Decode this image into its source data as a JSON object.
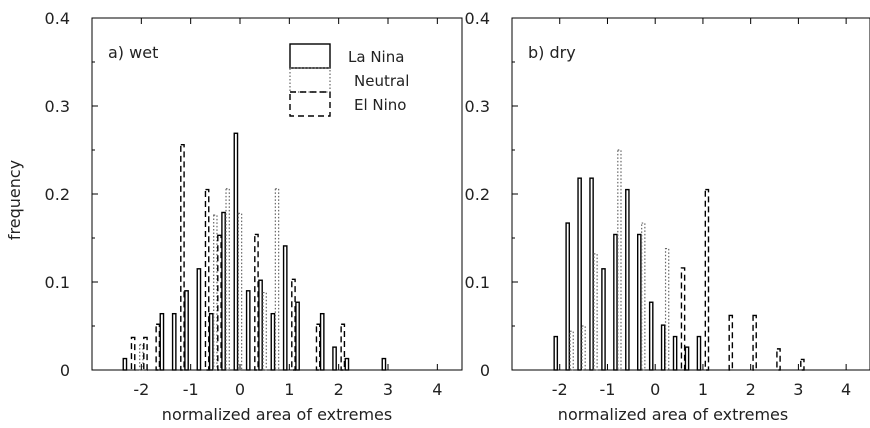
{
  "figure": {
    "ylabel": "frequency",
    "legend": [
      "La Nina",
      "Neutral",
      "El Nino"
    ],
    "legend_placement": "top-right of panel a"
  },
  "chart_data": [
    {
      "type": "bar",
      "panel_label": "a) wet",
      "xlabel": "normalized area of extremes",
      "ylabel": "frequency",
      "xlim": [
        -3,
        4.5
      ],
      "ylim": [
        0,
        0.4
      ],
      "xticks": [
        -2,
        -1,
        0,
        1,
        2,
        3,
        4
      ],
      "yticks": [
        0,
        0.1,
        0.2,
        0.3,
        0.4
      ],
      "xtick_labels": [
        "-2",
        "-1",
        "0",
        "1",
        "2",
        "3",
        "4"
      ],
      "ytick_labels": [
        "0",
        "0.1",
        "0.2",
        "0.3",
        "0.4"
      ],
      "bin_centers": [
        -2.25,
        -2.0,
        -1.75,
        -1.5,
        -1.25,
        -1.0,
        -0.75,
        -0.5,
        -0.25,
        0.0,
        0.25,
        0.5,
        0.75,
        1.0,
        1.25,
        1.5,
        1.75,
        2.0,
        2.25,
        2.5,
        2.75,
        3.0
      ],
      "series": [
        {
          "name": "La Nina",
          "style": "solid",
          "color": "#000000",
          "values": [
            0.013,
            0.0,
            0.0,
            0.064,
            0.064,
            0.09,
            0.115,
            0.064,
            0.179,
            0.269,
            0.09,
            0.102,
            0.064,
            0.141,
            0.077,
            0.0,
            0.064,
            0.026,
            0.013,
            0.0,
            0.0,
            0.013
          ]
        },
        {
          "name": "Neutral",
          "style": "dotted",
          "color": "#666666",
          "values": [
            0.0,
            0.029,
            0.0,
            0.0,
            0.0,
            0.0,
            0.0,
            0.176,
            0.206,
            0.178,
            0.0,
            0.088,
            0.206,
            0.0,
            0.0,
            0.0,
            0.0,
            0.0,
            0.0,
            0.0,
            0.0,
            0.0
          ]
        },
        {
          "name": "El Nino",
          "style": "dashed",
          "color": "#000000",
          "values": [
            0.037,
            0.037,
            0.052,
            0.0,
            0.256,
            0.0,
            0.205,
            0.153,
            0.0,
            0.0,
            0.154,
            0.0,
            0.0,
            0.103,
            0.0,
            0.052,
            0.0,
            0.052,
            0.0,
            0.0,
            0.0,
            0.0
          ]
        }
      ]
    },
    {
      "type": "bar",
      "panel_label": "b) dry",
      "xlabel": "normalized area of extremes",
      "ylabel": "frequency",
      "xlim": [
        -3,
        4.5
      ],
      "ylim": [
        0,
        0.4
      ],
      "xticks": [
        -2,
        -1,
        0,
        1,
        2,
        3,
        4
      ],
      "yticks": [
        0,
        0.1,
        0.2,
        0.3,
        0.4
      ],
      "xtick_labels": [
        "-2",
        "-1",
        "0",
        "1",
        "2",
        "3",
        "4"
      ],
      "ytick_labels": [
        "0",
        "0.1",
        "0.2",
        "0.3",
        "0.4"
      ],
      "bin_centers": [
        -2.25,
        -2.0,
        -1.75,
        -1.5,
        -1.25,
        -1.0,
        -0.75,
        -0.5,
        -0.25,
        0.0,
        0.25,
        0.5,
        0.75,
        1.0,
        1.25,
        1.5,
        1.75,
        2.0,
        2.25,
        2.5,
        2.75,
        3.0
      ],
      "series": [
        {
          "name": "La Nina",
          "style": "solid",
          "color": "#000000",
          "values": [
            0.0,
            0.038,
            0.167,
            0.218,
            0.218,
            0.115,
            0.154,
            0.205,
            0.154,
            0.077,
            0.051,
            0.038,
            0.026,
            0.038,
            0.0,
            0.0,
            0.0,
            0.0,
            0.0,
            0.0,
            0.0,
            0.0
          ]
        },
        {
          "name": "Neutral",
          "style": "dotted",
          "color": "#666666",
          "values": [
            0.0,
            0.0,
            0.044,
            0.05,
            0.132,
            0.0,
            0.25,
            0.0,
            0.167,
            0.0,
            0.138,
            0.0,
            0.0,
            0.0,
            0.0,
            0.0,
            0.0,
            0.0,
            0.0,
            0.0,
            0.0,
            0.0
          ]
        },
        {
          "name": "El Nino",
          "style": "dashed",
          "color": "#000000",
          "values": [
            0.0,
            0.0,
            0.0,
            0.0,
            0.0,
            0.0,
            0.0,
            0.0,
            0.0,
            0.0,
            0.0,
            0.116,
            0.0,
            0.205,
            0.0,
            0.062,
            0.0,
            0.062,
            0.0,
            0.024,
            0.0,
            0.012
          ]
        }
      ]
    }
  ]
}
